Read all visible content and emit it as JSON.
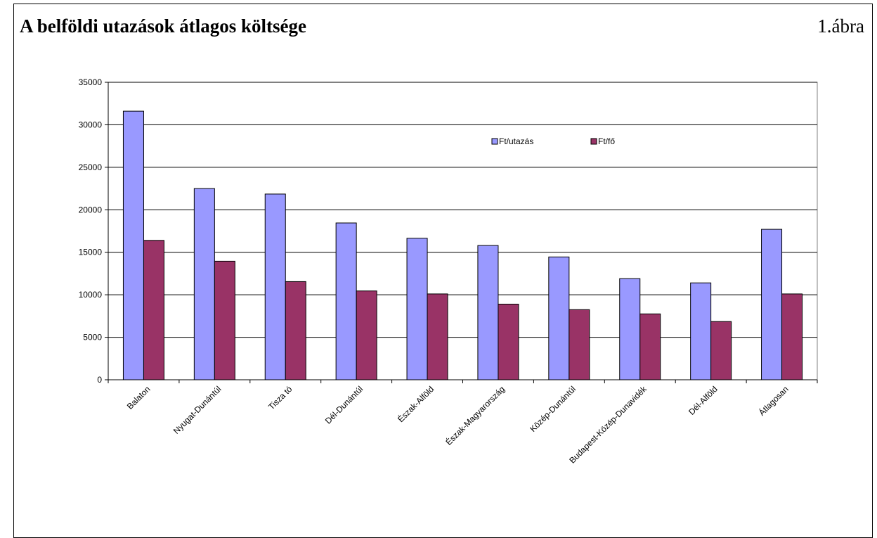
{
  "header": {
    "title": "A belföldi utazások átlagos költsége",
    "figure_label": "1.ábra"
  },
  "chart_data": {
    "type": "bar",
    "title": "",
    "xlabel": "",
    "ylabel": "",
    "ylim": [
      0,
      35000
    ],
    "yticks": [
      0,
      5000,
      10000,
      15000,
      20000,
      25000,
      30000,
      35000
    ],
    "grid": true,
    "legend_position": "top-right",
    "categories": [
      "Balaton",
      "Nyugat-Dunántúl",
      "Tisza tó",
      "Dél-Dunántúl",
      "Észak-Alföld",
      "Észak-Magyarország",
      "Közép-Dunántúl",
      "Budapest-Közép-Dunavidék",
      "Dél-Alföld",
      "Átlagosan"
    ],
    "series": [
      {
        "name": "Ft/utazás",
        "color": "#9999ff",
        "values": [
          31600,
          22500,
          21850,
          18450,
          16650,
          15800,
          14450,
          11900,
          11400,
          17700
        ]
      },
      {
        "name": "Ft/fő",
        "color": "#993366",
        "values": [
          16400,
          13950,
          11550,
          10450,
          10100,
          8900,
          8250,
          7750,
          6850,
          10100
        ]
      }
    ]
  }
}
